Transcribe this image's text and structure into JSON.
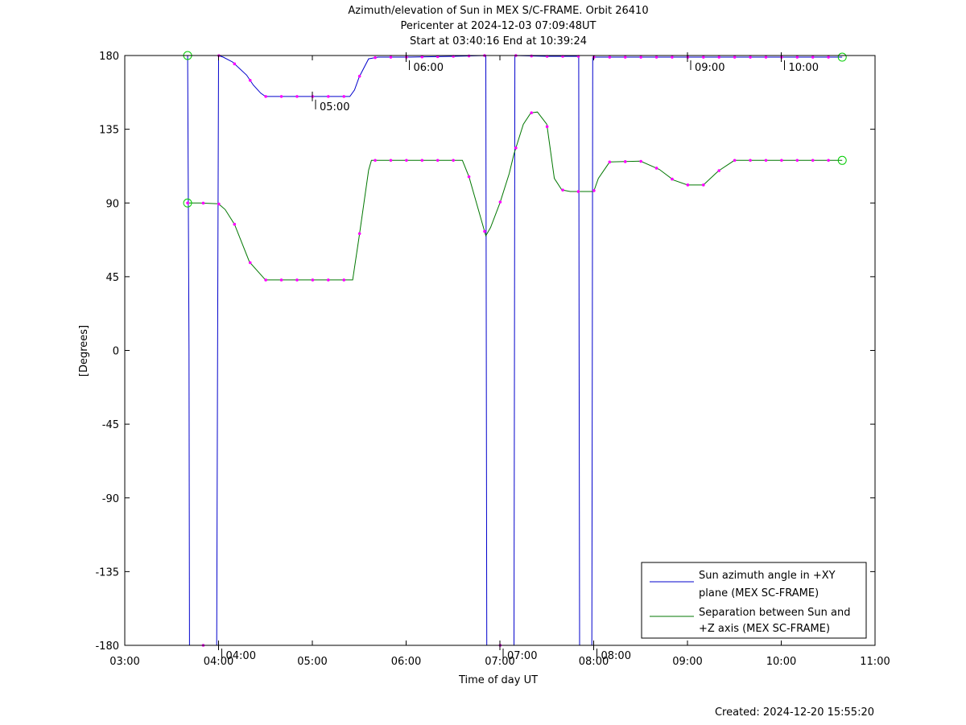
{
  "chart_data": {
    "type": "line",
    "title": "Azimuth/elevation of Sun in MEX S/C-FRAME.  Orbit 26410",
    "subtitle_lines": [
      "Pericenter at 2024-12-03 07:09:48UT",
      "Start at 03:40:16 End at 10:39:24"
    ],
    "xlabel": "Time of day UT",
    "ylabel": "[Degrees]",
    "xlim": [
      3.0,
      11.0
    ],
    "ylim": [
      -180,
      180
    ],
    "x_ticks": [
      3,
      4,
      5,
      6,
      7,
      8,
      9,
      10,
      11
    ],
    "x_tick_labels": [
      "03:00",
      "04:00",
      "05:00",
      "06:00",
      "07:00",
      "08:00",
      "09:00",
      "10:00",
      "11:00"
    ],
    "y_ticks": [
      180,
      135,
      90,
      45,
      0,
      -45,
      -90,
      -135,
      -180
    ],
    "y_tick_labels": [
      "180",
      "135",
      "90",
      "45",
      "0",
      "-45",
      "-90",
      "-135",
      "-180"
    ],
    "grid": false,
    "legend_position": "bottom-right",
    "colors": {
      "azimuth": "#0000cc",
      "separation": "#007700",
      "marker": "#ff00ff",
      "endpoint": "#00cc00"
    },
    "series": [
      {
        "name": "Sun azimuth angle in +XY plane (MEX SC-FRAME)",
        "legend_lines": [
          "Sun azimuth angle in +XY",
          "plane (MEX SC-FRAME)"
        ],
        "color": "#0000cc",
        "x": [
          3.67,
          3.685,
          3.69,
          3.98,
          3.99,
          4.0,
          4.05,
          4.15,
          4.3,
          4.37,
          4.45,
          4.5,
          4.6,
          4.8,
          5.0,
          5.2,
          5.33,
          5.4,
          5.45,
          5.5,
          5.6,
          5.7,
          6.0,
          6.5,
          6.85,
          6.855,
          6.86,
          7.15,
          7.155,
          7.16,
          7.5,
          7.84,
          7.845,
          7.85,
          7.98,
          7.985,
          7.99,
          8.05,
          8.5,
          9.0,
          9.5,
          10.0,
          10.65
        ],
        "y": [
          180,
          0,
          -180,
          -180,
          0,
          180,
          179,
          176,
          168,
          162,
          157,
          155,
          155,
          155,
          155,
          155,
          155,
          155,
          159,
          167,
          178,
          179,
          179,
          179.5,
          180,
          0,
          -180,
          -180,
          0,
          180,
          179.5,
          179.5,
          0,
          -180,
          -180,
          0,
          179,
          179,
          179,
          179,
          179,
          179,
          179
        ]
      },
      {
        "name": "Separation between Sun and +Z axis (MEX SC-FRAME)",
        "legend_lines": [
          "Separation between Sun and",
          "+Z axis (MEX SC-FRAME)"
        ],
        "color": "#007700",
        "x": [
          3.67,
          3.8,
          4.0,
          4.07,
          4.17,
          4.33,
          4.5,
          4.6,
          4.8,
          5.0,
          5.2,
          5.43,
          5.5,
          5.6,
          5.63,
          5.7,
          6.0,
          6.3,
          6.6,
          6.67,
          6.75,
          6.85,
          6.9,
          7.0,
          7.1,
          7.15,
          7.25,
          7.33,
          7.4,
          7.5,
          7.58,
          7.66,
          7.75,
          7.84,
          7.92,
          8.0,
          8.05,
          8.17,
          8.5,
          8.7,
          8.85,
          9.0,
          9.17,
          9.33,
          9.5,
          10.0,
          10.65
        ],
        "y": [
          90,
          90,
          89.5,
          86,
          77,
          54,
          43,
          43,
          43,
          43,
          43,
          43,
          70,
          110,
          116,
          116,
          116,
          116,
          116,
          106,
          90,
          70,
          75,
          90,
          108,
          120,
          138,
          145,
          145.5,
          138,
          105,
          98,
          97,
          97,
          97,
          97,
          105,
          115,
          115.5,
          110.5,
          104,
          101,
          101,
          109.5,
          116,
          116,
          116
        ]
      }
    ],
    "annotations": [
      {
        "text": "04:00",
        "x": 4.0,
        "y": -180
      },
      {
        "text": "05:00",
        "x": 5.0,
        "y": 155
      },
      {
        "text": "06:00",
        "x": 6.0,
        "y": 179
      },
      {
        "text": "07:00",
        "x": 7.0,
        "y": -180
      },
      {
        "text": "08:00",
        "x": 8.0,
        "y": -180
      },
      {
        "text": "09:00",
        "x": 9.0,
        "y": 179
      },
      {
        "text": "10:00",
        "x": 10.0,
        "y": 179
      }
    ],
    "footer": "Created: 2024-12-20 15:55:20"
  }
}
